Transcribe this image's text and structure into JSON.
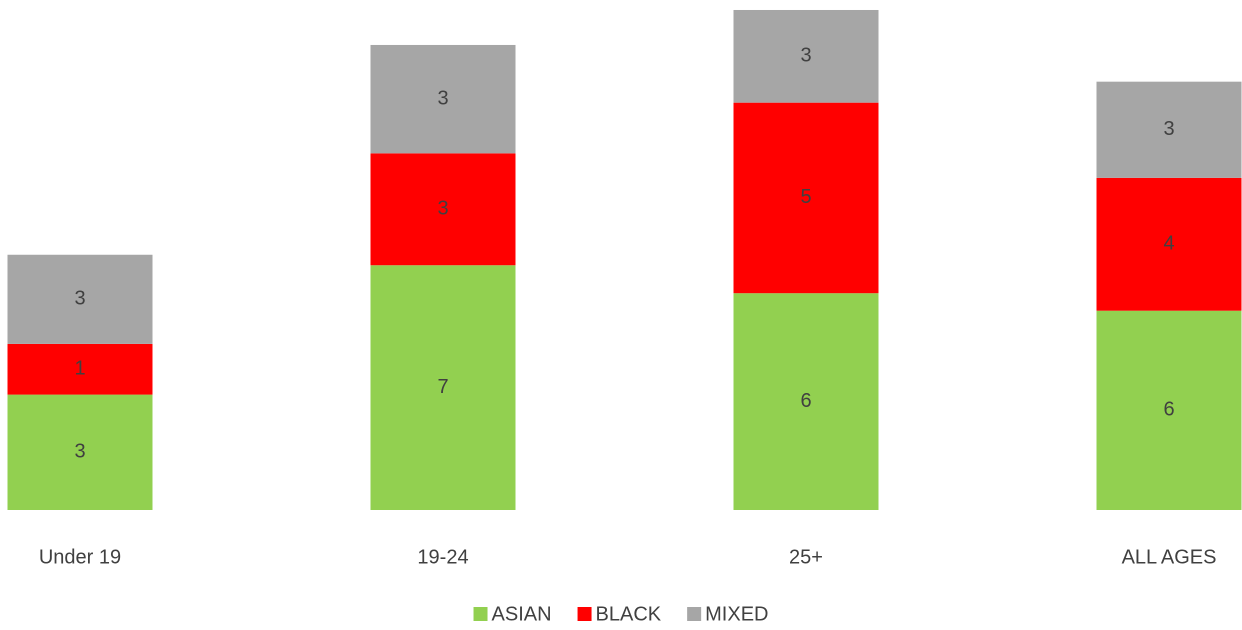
{
  "chart_data": {
    "type": "bar",
    "stacked": true,
    "categories": [
      "Under 19",
      "19-24",
      "25+",
      "ALL AGES"
    ],
    "series": [
      {
        "name": "ASIAN",
        "color": "#92d050",
        "values": [
          3.3,
          7.0,
          6.2,
          5.7
        ],
        "value_labels": [
          "3",
          "7",
          "6",
          "6"
        ]
      },
      {
        "name": "BLACK",
        "color": "#ff0000",
        "values": [
          1.45,
          3.2,
          5.45,
          3.8
        ],
        "value_labels": [
          "1",
          "3",
          "5",
          "4"
        ]
      },
      {
        "name": "MIXED",
        "color": "#a6a6a6",
        "values": [
          2.55,
          3.1,
          2.65,
          2.75
        ],
        "value_labels": [
          "3",
          "3",
          "3",
          "3"
        ]
      }
    ],
    "ylim": [
      0,
      14.5
    ],
    "legend": "bottom"
  }
}
